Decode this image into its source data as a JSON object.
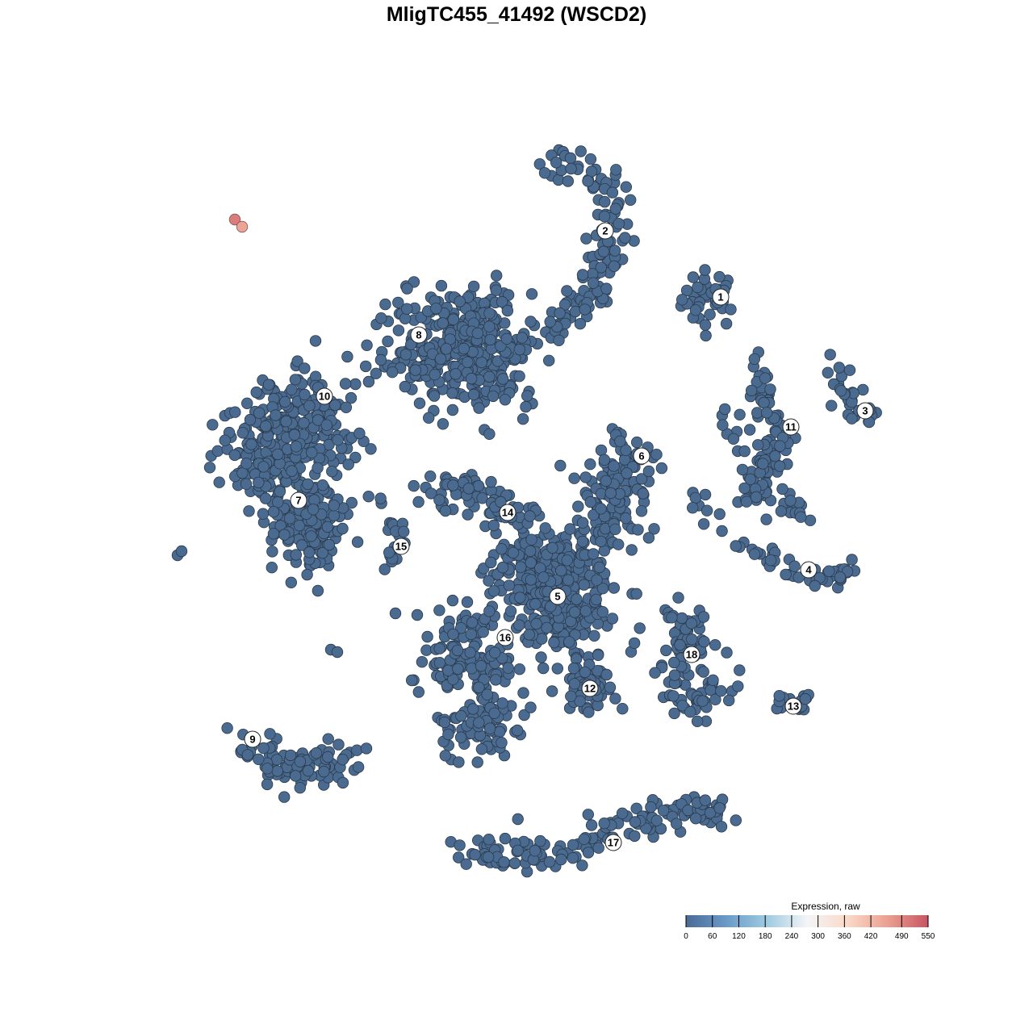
{
  "chart_data": {
    "type": "scatter",
    "title": "MligTC455_41492 (WSCD2)",
    "xlabel": "",
    "ylabel": "",
    "axes_visible": false,
    "grid": false,
    "point_style": {
      "fill_low": "#4a6a8f",
      "stroke": "#2b3b4d"
    },
    "clusters": [
      {
        "label": "1",
        "label_pos": [
          25.3,
          27.2
        ],
        "path": [
          [
            24,
            27
          ]
        ],
        "spread": 2.5,
        "n": 40,
        "value": 0
      },
      {
        "label": "2",
        "label_pos": [
          11,
          35.4
        ],
        "path": [
          [
            5,
            44
          ],
          [
            11,
            41
          ],
          [
            13,
            35
          ],
          [
            10,
            29
          ],
          [
            7,
            25
          ],
          [
            3,
            22.5
          ]
        ],
        "spread": 1.8,
        "n": 130,
        "value": 0
      },
      {
        "label": "3",
        "label_pos": [
          43.2,
          13.1
        ],
        "path": [
          [
            39,
            19
          ],
          [
            41,
            16
          ],
          [
            42,
            13
          ],
          [
            46,
            12
          ]
        ],
        "spread": 1,
        "n": 30,
        "value": 0
      },
      {
        "label": "4",
        "label_pos": [
          36.2,
          -6.6
        ],
        "path": [
          [
            22,
            3
          ],
          [
            26,
            -3
          ],
          [
            32,
            -5.5
          ],
          [
            38,
            -7.5
          ],
          [
            42,
            -6.5
          ]
        ],
        "spread": 1,
        "n": 55,
        "value": 0
      },
      {
        "label": "5",
        "label_pos": [
          5.1,
          -9.9
        ],
        "path": [
          [
            5,
            -10
          ],
          [
            2,
            -6
          ],
          [
            8,
            -13
          ]
        ],
        "spread": 4.5,
        "n": 380,
        "value": 0
      },
      {
        "label": "6",
        "label_pos": [
          15.5,
          7.5
        ],
        "path": [
          [
            14,
            8
          ],
          [
            12,
            2
          ],
          [
            10,
            -4
          ]
        ],
        "spread": 3,
        "n": 140,
        "value": 0
      },
      {
        "label": "7",
        "label_pos": [
          -27,
          2
        ],
        "path": [
          [
            -26,
            2
          ],
          [
            -25,
            -4
          ]
        ],
        "spread": 3,
        "n": 150,
        "value": 0
      },
      {
        "label": "8",
        "label_pos": [
          -12.1,
          22.5
        ],
        "path": [
          [
            -10,
            22
          ],
          [
            -4,
            24
          ],
          [
            -3,
            17
          ],
          [
            -15,
            20
          ]
        ],
        "spread": 4,
        "n": 380,
        "value": 0
      },
      {
        "label": "9",
        "label_pos": [
          -32.7,
          -27.6
        ],
        "path": [
          [
            -33,
            -28
          ],
          [
            -29,
            -31
          ],
          [
            -24,
            -32
          ],
          [
            -21,
            -29
          ]
        ],
        "spread": 1.8,
        "n": 85,
        "value": 0
      },
      {
        "label": "10",
        "label_pos": [
          -23.8,
          14.9
        ],
        "path": [
          [
            -24,
            15
          ],
          [
            -32,
            10
          ],
          [
            -30,
            4
          ],
          [
            -22,
            12
          ]
        ],
        "spread": 3.5,
        "n": 300,
        "value": 0
      },
      {
        "label": "11",
        "label_pos": [
          34,
          11.1
        ],
        "path": [
          [
            29.5,
            20
          ],
          [
            30.5,
            14
          ],
          [
            32,
            11
          ],
          [
            32,
            6
          ],
          [
            29,
            3
          ],
          [
            35,
            1
          ],
          [
            25,
            14
          ]
        ],
        "spread": 1.5,
        "n": 130,
        "value": 0
      },
      {
        "label": "12",
        "label_pos": [
          9.1,
          -21.3
        ],
        "path": [
          [
            8,
            -20
          ],
          [
            10,
            -22
          ]
        ],
        "spread": 2,
        "n": 60,
        "value": 0
      },
      {
        "label": "13",
        "label_pos": [
          34.3,
          -23.5
        ],
        "path": [
          [
            32,
            -24
          ],
          [
            37,
            -22
          ]
        ],
        "spread": 0.8,
        "n": 15,
        "value": 0
      },
      {
        "label": "14",
        "label_pos": [
          -1.1,
          0.5
        ],
        "path": [
          [
            -11,
            3
          ],
          [
            -6,
            3
          ],
          [
            -2,
            1
          ],
          [
            2,
            -1
          ]
        ],
        "spread": 1.8,
        "n": 80,
        "value": 0
      },
      {
        "label": "15",
        "label_pos": [
          -14.3,
          -3.7
        ],
        "path": [
          [
            -18,
            1.5
          ],
          [
            -15,
            -1
          ],
          [
            -14.5,
            -4
          ],
          [
            -16,
            -6.5
          ]
        ],
        "spread": 0.8,
        "n": 22,
        "value": 0
      },
      {
        "label": "16",
        "label_pos": [
          -1.4,
          -15
        ],
        "path": [
          [
            -4,
            -12
          ],
          [
            -10,
            -18
          ],
          [
            -3,
            -19
          ],
          [
            -2,
            -26
          ],
          [
            -8,
            -27
          ]
        ],
        "spread": 2.5,
        "n": 200,
        "value": 0
      },
      {
        "label": "17",
        "label_pos": [
          12,
          -40.4
        ],
        "path": [
          [
            -6,
            -42
          ],
          [
            4,
            -42
          ],
          [
            12,
            -39
          ],
          [
            21,
            -36
          ],
          [
            25,
            -37
          ]
        ],
        "spread": 1.5,
        "n": 160,
        "value": 0
      },
      {
        "label": "18",
        "label_pos": [
          21.7,
          -17.1
        ],
        "path": [
          [
            19,
            -12
          ],
          [
            22,
            -14
          ],
          [
            20,
            -19
          ],
          [
            21,
            -24
          ],
          [
            26.5,
            -20
          ]
        ],
        "spread": 1.8,
        "n": 100,
        "value": 0
      }
    ],
    "outliers": [
      {
        "x": -42,
        "y": -4.8,
        "value": 0
      },
      {
        "x": -41.5,
        "y": -4.3,
        "value": 0
      },
      {
        "x": -23,
        "y": -16.5,
        "value": 0
      },
      {
        "x": -22.2,
        "y": -16.8,
        "value": 0
      },
      {
        "x": -15,
        "y": -12,
        "value": 0
      },
      {
        "x": -12.3,
        "y": -12.2,
        "value": 0
      }
    ],
    "high_points": [
      {
        "x": -34.9,
        "y": 36.8,
        "value": 500
      },
      {
        "x": -34.0,
        "y": 35.9,
        "value": 450
      }
    ],
    "colorbar": {
      "title": "Expression, raw",
      "range": [
        0,
        550
      ],
      "ticks": [
        "0",
        "60",
        "120",
        "180",
        "240",
        "300",
        "360",
        "420",
        "490",
        "550"
      ],
      "colors": [
        "#4a6a96",
        "#6a9ac8",
        "#9ecae1",
        "#f3f5f7",
        "#fbd9c8",
        "#eaa090",
        "#c85462"
      ]
    }
  }
}
